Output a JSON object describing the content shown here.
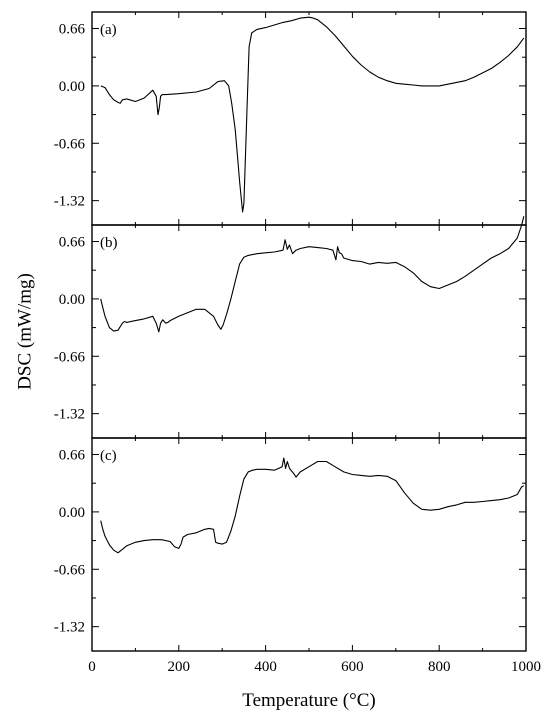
{
  "chart_data": {
    "type": "line",
    "xlabel": "Temperature (°C)",
    "ylabel": "DSC (mW/mg)",
    "xlim": [
      0,
      1000
    ],
    "x_ticks": [
      "0",
      "200",
      "400",
      "600",
      "800",
      "1000"
    ],
    "ylim": [
      -1.6,
      0.85
    ],
    "y_ticks": [
      "0.66",
      "0.00",
      "-0.66",
      "-1.32"
    ],
    "grid": false,
    "panels": [
      {
        "label": "(a)",
        "series": [
          {
            "x": [
              20,
              30,
              40,
              50,
              60,
              65,
              70,
              80,
              100,
              120,
              140,
              148,
              152,
              155,
              158,
              162,
              170,
              200,
              240,
              270,
              290,
              305,
              315,
              322,
              330,
              336,
              340,
              344,
              347,
              350,
              353,
              357,
              362,
              368,
              380,
              400,
              420,
              440,
              460,
              480,
              500,
              510,
              520,
              540,
              560,
              580,
              600,
              620,
              640,
              660,
              680,
              700,
              720,
              740,
              760,
              780,
              800,
              820,
              840,
              860,
              880,
              900,
              920,
              940,
              960,
              980,
              995
            ],
            "y": [
              0.0,
              -0.02,
              -0.1,
              -0.16,
              -0.19,
              -0.2,
              -0.16,
              -0.15,
              -0.18,
              -0.14,
              -0.05,
              -0.12,
              -0.33,
              -0.25,
              -0.12,
              -0.1,
              -0.1,
              -0.09,
              -0.07,
              -0.03,
              0.05,
              0.06,
              0.0,
              -0.2,
              -0.5,
              -0.85,
              -1.1,
              -1.3,
              -1.45,
              -1.35,
              -0.9,
              -0.3,
              0.45,
              0.61,
              0.65,
              0.67,
              0.7,
              0.73,
              0.75,
              0.78,
              0.79,
              0.78,
              0.76,
              0.68,
              0.58,
              0.46,
              0.34,
              0.24,
              0.16,
              0.1,
              0.06,
              0.03,
              0.02,
              0.01,
              0.0,
              0.0,
              0.0,
              0.02,
              0.04,
              0.06,
              0.1,
              0.15,
              0.2,
              0.27,
              0.35,
              0.45,
              0.55
            ]
          }
        ]
      },
      {
        "label": "(b)",
        "series": [
          {
            "x": [
              20,
              25,
              30,
              40,
              50,
              60,
              70,
              75,
              80,
              100,
              120,
              140,
              148,
              154,
              158,
              163,
              170,
              175,
              180,
              200,
              220,
              240,
              260,
              280,
              290,
              297,
              302,
              310,
              320,
              330,
              340,
              350,
              360,
              380,
              400,
              420,
              440,
              445,
              450,
              455,
              462,
              470,
              480,
              500,
              520,
              540,
              555,
              562,
              566,
              570,
              575,
              580,
              600,
              620,
              640,
              660,
              680,
              700,
              720,
              740,
              760,
              780,
              800,
              820,
              840,
              860,
              880,
              900,
              920,
              940,
              960,
              980,
              990,
              995
            ],
            "y": [
              0.0,
              -0.1,
              -0.2,
              -0.33,
              -0.37,
              -0.36,
              -0.28,
              -0.26,
              -0.27,
              -0.25,
              -0.23,
              -0.2,
              -0.28,
              -0.38,
              -0.28,
              -0.24,
              -0.28,
              -0.27,
              -0.25,
              -0.2,
              -0.16,
              -0.12,
              -0.12,
              -0.2,
              -0.3,
              -0.35,
              -0.3,
              -0.18,
              0.0,
              0.2,
              0.4,
              0.48,
              0.5,
              0.52,
              0.53,
              0.54,
              0.56,
              0.68,
              0.57,
              0.62,
              0.52,
              0.56,
              0.58,
              0.6,
              0.59,
              0.58,
              0.56,
              0.45,
              0.6,
              0.53,
              0.52,
              0.47,
              0.44,
              0.43,
              0.4,
              0.42,
              0.41,
              0.42,
              0.37,
              0.3,
              0.2,
              0.14,
              0.12,
              0.16,
              0.2,
              0.26,
              0.33,
              0.4,
              0.47,
              0.52,
              0.58,
              0.7,
              0.85,
              0.95
            ]
          }
        ]
      },
      {
        "label": "(c)",
        "series": [
          {
            "x": [
              20,
              25,
              30,
              40,
              50,
              60,
              70,
              80,
              100,
              120,
              140,
              160,
              180,
              190,
              200,
              205,
              210,
              220,
              240,
              260,
              270,
              280,
              285,
              290,
              300,
              310,
              320,
              330,
              340,
              350,
              360,
              370,
              380,
              400,
              420,
              430,
              438,
              442,
              446,
              450,
              455,
              460,
              465,
              470,
              480,
              500,
              520,
              540,
              560,
              580,
              600,
              620,
              640,
              660,
              680,
              700,
              720,
              740,
              760,
              780,
              800,
              820,
              840,
              860,
              880,
              900,
              920,
              940,
              960,
              980,
              990,
              995
            ],
            "y": [
              -0.1,
              -0.2,
              -0.28,
              -0.38,
              -0.44,
              -0.47,
              -0.43,
              -0.39,
              -0.35,
              -0.33,
              -0.32,
              -0.32,
              -0.34,
              -0.4,
              -0.42,
              -0.37,
              -0.29,
              -0.26,
              -0.24,
              -0.2,
              -0.19,
              -0.2,
              -0.35,
              -0.36,
              -0.37,
              -0.35,
              -0.22,
              -0.05,
              0.18,
              0.38,
              0.46,
              0.48,
              0.49,
              0.49,
              0.48,
              0.5,
              0.52,
              0.62,
              0.5,
              0.58,
              0.5,
              0.47,
              0.44,
              0.4,
              0.46,
              0.52,
              0.58,
              0.58,
              0.52,
              0.46,
              0.43,
              0.42,
              0.41,
              0.42,
              0.41,
              0.36,
              0.22,
              0.1,
              0.03,
              0.02,
              0.03,
              0.06,
              0.08,
              0.11,
              0.11,
              0.12,
              0.13,
              0.14,
              0.16,
              0.2,
              0.29,
              0.3
            ]
          }
        ]
      }
    ]
  }
}
